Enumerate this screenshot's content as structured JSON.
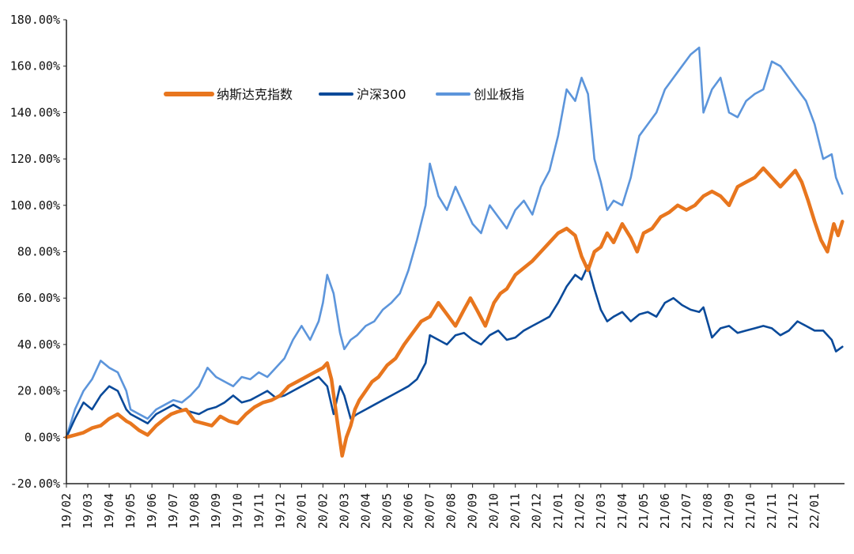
{
  "chart_data": {
    "type": "line",
    "title": "",
    "xlabel": "",
    "ylabel": "",
    "ylim": [
      -20,
      180
    ],
    "y_ticks": [
      -20,
      0,
      20,
      40,
      60,
      80,
      100,
      120,
      140,
      160,
      180
    ],
    "y_tick_labels": [
      "-20.00%",
      "0.00%",
      "20.00%",
      "40.00%",
      "60.00%",
      "80.00%",
      "100.00%",
      "120.00%",
      "140.00%",
      "160.00%",
      "180.00%"
    ],
    "x_tick_labels": [
      "19/02",
      "19/03",
      "19/04",
      "19/05",
      "19/06",
      "19/07",
      "19/08",
      "19/09",
      "19/10",
      "19/11",
      "19/12",
      "20/01",
      "20/02",
      "20/03",
      "20/04",
      "20/05",
      "20/06",
      "20/07",
      "20/08",
      "20/09",
      "20/10",
      "20/11",
      "20/12",
      "21/01",
      "21/02",
      "21/03",
      "21/04",
      "21/05",
      "21/06",
      "21/07",
      "21/08",
      "21/09",
      "21/10",
      "21/11",
      "21/12",
      "22/01"
    ],
    "x_range": [
      0,
      36.4
    ],
    "legend_position": "top-left",
    "series": [
      {
        "name": "纳斯达克指数",
        "color": "#E8761E",
        "x": [
          0,
          0.4,
          0.8,
          1.2,
          1.6,
          2.0,
          2.4,
          2.8,
          3.0,
          3.4,
          3.8,
          4.2,
          4.6,
          4.9,
          5.2,
          5.6,
          6.0,
          6.4,
          6.8,
          7.2,
          7.6,
          8.0,
          8.4,
          8.8,
          9.2,
          9.6,
          10.0,
          10.4,
          10.8,
          11.2,
          11.6,
          12.0,
          12.2,
          12.4,
          12.7,
          12.9,
          13.1,
          13.3,
          13.5,
          13.7,
          14.0,
          14.3,
          14.6,
          15.0,
          15.4,
          15.8,
          16.2,
          16.6,
          17.0,
          17.4,
          17.8,
          18.2,
          18.6,
          18.9,
          19.2,
          19.6,
          20.0,
          20.3,
          20.6,
          21.0,
          21.4,
          21.8,
          22.2,
          22.6,
          23.0,
          23.4,
          23.8,
          24.1,
          24.4,
          24.7,
          25.0,
          25.3,
          25.6,
          26.0,
          26.4,
          26.7,
          27.0,
          27.4,
          27.8,
          28.2,
          28.6,
          29.0,
          29.4,
          29.8,
          30.2,
          30.6,
          31.0,
          31.4,
          31.8,
          32.2,
          32.6,
          33.0,
          33.4,
          33.8,
          34.1,
          34.4,
          34.7,
          35.0,
          35.3,
          35.6,
          35.9,
          36.1,
          36.3
        ],
        "values": [
          0,
          1,
          2,
          4,
          5,
          8,
          10,
          7,
          6,
          3,
          1,
          5,
          8,
          10,
          11,
          12,
          7,
          6,
          5,
          9,
          7,
          6,
          10,
          13,
          15,
          16,
          18,
          22,
          24,
          26,
          28,
          30,
          32,
          25,
          5,
          -8,
          0,
          5,
          12,
          16,
          20,
          24,
          26,
          31,
          34,
          40,
          45,
          50,
          52,
          58,
          53,
          48,
          55,
          60,
          55,
          48,
          58,
          62,
          64,
          70,
          73,
          76,
          80,
          84,
          88,
          90,
          87,
          78,
          72,
          80,
          82,
          88,
          84,
          92,
          86,
          80,
          88,
          90,
          95,
          97,
          100,
          98,
          100,
          104,
          106,
          104,
          100,
          108,
          110,
          112,
          116,
          112,
          108,
          112,
          115,
          110,
          102,
          93,
          85,
          80,
          92,
          87,
          93
        ]
      },
      {
        "name": "沪深300",
        "color": "#0A4A9A",
        "x": [
          0,
          0.4,
          0.8,
          1.2,
          1.6,
          2.0,
          2.4,
          2.8,
          3.0,
          3.4,
          3.8,
          4.2,
          4.6,
          5.0,
          5.4,
          5.8,
          6.2,
          6.6,
          7.0,
          7.4,
          7.8,
          8.2,
          8.6,
          9.0,
          9.4,
          9.8,
          10.2,
          10.6,
          11.0,
          11.4,
          11.8,
          12.0,
          12.2,
          12.5,
          12.8,
          13.0,
          13.3,
          13.6,
          14.0,
          14.4,
          14.8,
          15.2,
          15.6,
          16.0,
          16.4,
          16.8,
          17.0,
          17.4,
          17.8,
          18.2,
          18.6,
          19.0,
          19.4,
          19.8,
          20.2,
          20.6,
          21.0,
          21.4,
          21.8,
          22.2,
          22.6,
          23.0,
          23.4,
          23.8,
          24.1,
          24.4,
          24.7,
          25.0,
          25.3,
          25.6,
          26.0,
          26.4,
          26.8,
          27.2,
          27.6,
          28.0,
          28.4,
          28.8,
          29.2,
          29.6,
          29.8,
          30.2,
          30.6,
          31.0,
          31.4,
          31.8,
          32.2,
          32.6,
          33.0,
          33.4,
          33.8,
          34.2,
          34.6,
          35.0,
          35.4,
          35.8,
          36.0,
          36.3
        ],
        "values": [
          0,
          8,
          15,
          12,
          18,
          22,
          20,
          12,
          10,
          8,
          6,
          10,
          12,
          14,
          12,
          11,
          10,
          12,
          13,
          15,
          18,
          15,
          16,
          18,
          20,
          17,
          18,
          20,
          22,
          24,
          26,
          24,
          22,
          10,
          22,
          18,
          8,
          10,
          12,
          14,
          16,
          18,
          20,
          22,
          25,
          32,
          44,
          42,
          40,
          44,
          45,
          42,
          40,
          44,
          46,
          42,
          43,
          46,
          48,
          50,
          52,
          58,
          65,
          70,
          68,
          74,
          64,
          55,
          50,
          52,
          54,
          50,
          53,
          54,
          52,
          58,
          60,
          57,
          55,
          54,
          56,
          43,
          47,
          48,
          45,
          46,
          47,
          48,
          47,
          44,
          46,
          50,
          48,
          46,
          46,
          42,
          37,
          39
        ]
      },
      {
        "name": "创业板指",
        "color": "#5C95DB",
        "x": [
          0,
          0.4,
          0.8,
          1.2,
          1.6,
          2.0,
          2.4,
          2.8,
          3.0,
          3.4,
          3.8,
          4.2,
          4.6,
          5.0,
          5.4,
          5.8,
          6.2,
          6.6,
          7.0,
          7.4,
          7.8,
          8.2,
          8.6,
          9.0,
          9.4,
          9.8,
          10.2,
          10.6,
          11.0,
          11.4,
          11.8,
          12.0,
          12.2,
          12.5,
          12.8,
          13.0,
          13.3,
          13.6,
          14.0,
          14.4,
          14.8,
          15.2,
          15.6,
          16.0,
          16.4,
          16.8,
          17.0,
          17.4,
          17.8,
          18.2,
          18.6,
          19.0,
          19.4,
          19.8,
          20.2,
          20.6,
          21.0,
          21.4,
          21.8,
          22.2,
          22.6,
          23.0,
          23.4,
          23.8,
          24.1,
          24.4,
          24.7,
          25.0,
          25.3,
          25.6,
          26.0,
          26.4,
          26.8,
          27.2,
          27.6,
          28.0,
          28.4,
          28.8,
          29.2,
          29.6,
          29.8,
          30.2,
          30.6,
          31.0,
          31.4,
          31.8,
          32.2,
          32.6,
          33.0,
          33.4,
          33.8,
          34.2,
          34.6,
          35.0,
          35.4,
          35.8,
          36.0,
          36.3
        ],
        "values": [
          0,
          12,
          20,
          25,
          33,
          30,
          28,
          20,
          12,
          10,
          8,
          12,
          14,
          16,
          15,
          18,
          22,
          30,
          26,
          24,
          22,
          26,
          25,
          28,
          26,
          30,
          34,
          42,
          48,
          42,
          50,
          58,
          70,
          62,
          45,
          38,
          42,
          44,
          48,
          50,
          55,
          58,
          62,
          72,
          85,
          100,
          118,
          104,
          98,
          108,
          100,
          92,
          88,
          100,
          95,
          90,
          98,
          102,
          96,
          108,
          115,
          130,
          150,
          145,
          155,
          148,
          120,
          110,
          98,
          102,
          100,
          112,
          130,
          135,
          140,
          150,
          155,
          160,
          165,
          168,
          140,
          150,
          155,
          140,
          138,
          145,
          148,
          150,
          162,
          160,
          155,
          150,
          145,
          135,
          120,
          122,
          112,
          105
        ]
      }
    ]
  }
}
